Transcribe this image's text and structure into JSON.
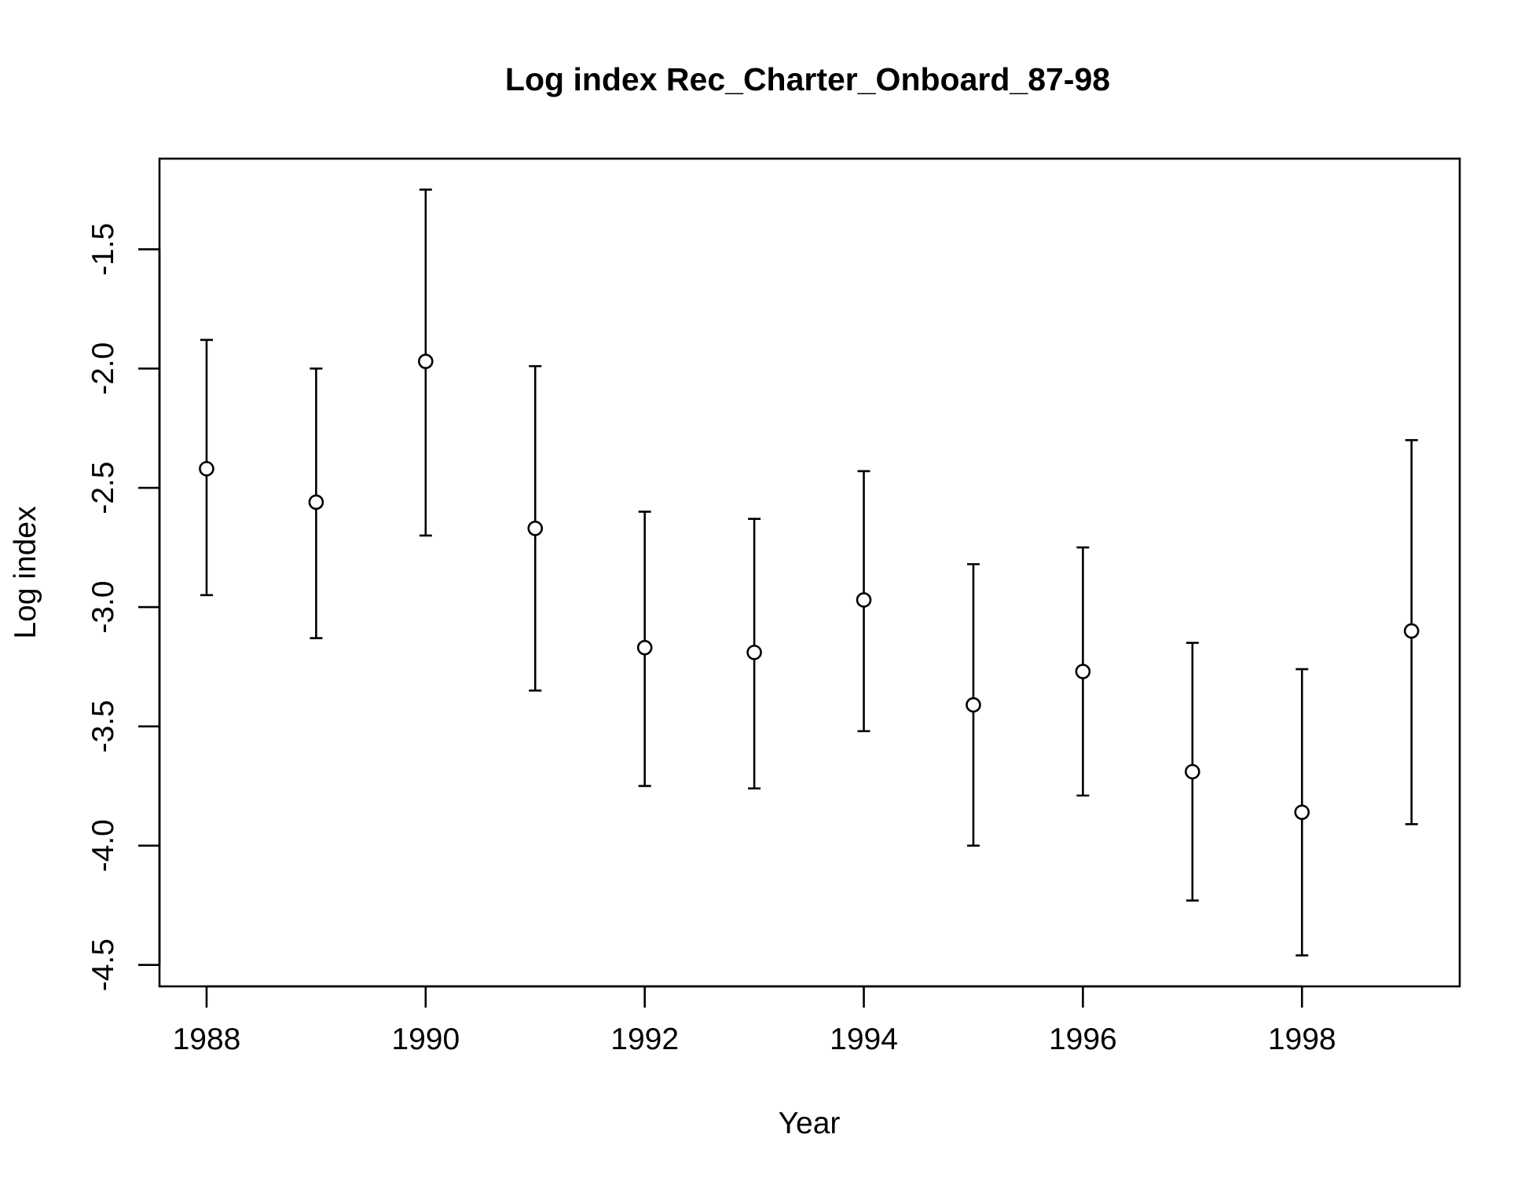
{
  "chart_data": {
    "type": "scatter",
    "title": "Log index Rec_Charter_Onboard_87-98",
    "xlabel": "Year",
    "ylabel": "Log index",
    "xlim": [
      1987.57,
      1999.44
    ],
    "ylim": [
      -4.59,
      -1.12
    ],
    "x_ticks": [
      1988,
      1990,
      1992,
      1994,
      1996,
      1998
    ],
    "x_tick_labels": [
      "1988",
      "1990",
      "1992",
      "1994",
      "1996",
      "1998"
    ],
    "y_ticks": [
      -4.5,
      -4.0,
      -3.5,
      -3.0,
      -2.5,
      -2.0,
      -1.5
    ],
    "y_tick_labels": [
      "-4.5",
      "-4.0",
      "-3.5",
      "-3.0",
      "-2.5",
      "-2.0",
      "-1.5"
    ],
    "grid": false,
    "legend": "none",
    "marker": "open-circle",
    "series": [
      {
        "x": [
          1988,
          1989,
          1990,
          1991,
          1992,
          1993,
          1994,
          1995,
          1996,
          1997,
          1998,
          1999
        ],
        "y": [
          -2.42,
          -2.56,
          -1.97,
          -2.67,
          -3.17,
          -3.19,
          -2.97,
          -3.41,
          -3.27,
          -3.69,
          -3.86,
          -3.1
        ],
        "lower": [
          -2.95,
          -3.13,
          -2.7,
          -3.35,
          -3.75,
          -3.76,
          -3.52,
          -4.0,
          -3.79,
          -4.23,
          -4.46,
          -3.91
        ],
        "upper": [
          -1.88,
          -2.0,
          -1.25,
          -1.99,
          -2.6,
          -2.63,
          -2.43,
          -2.82,
          -2.75,
          -3.15,
          -3.26,
          -2.3
        ]
      }
    ],
    "colors": {
      "points": "#000000",
      "background": "#ffffff"
    }
  }
}
